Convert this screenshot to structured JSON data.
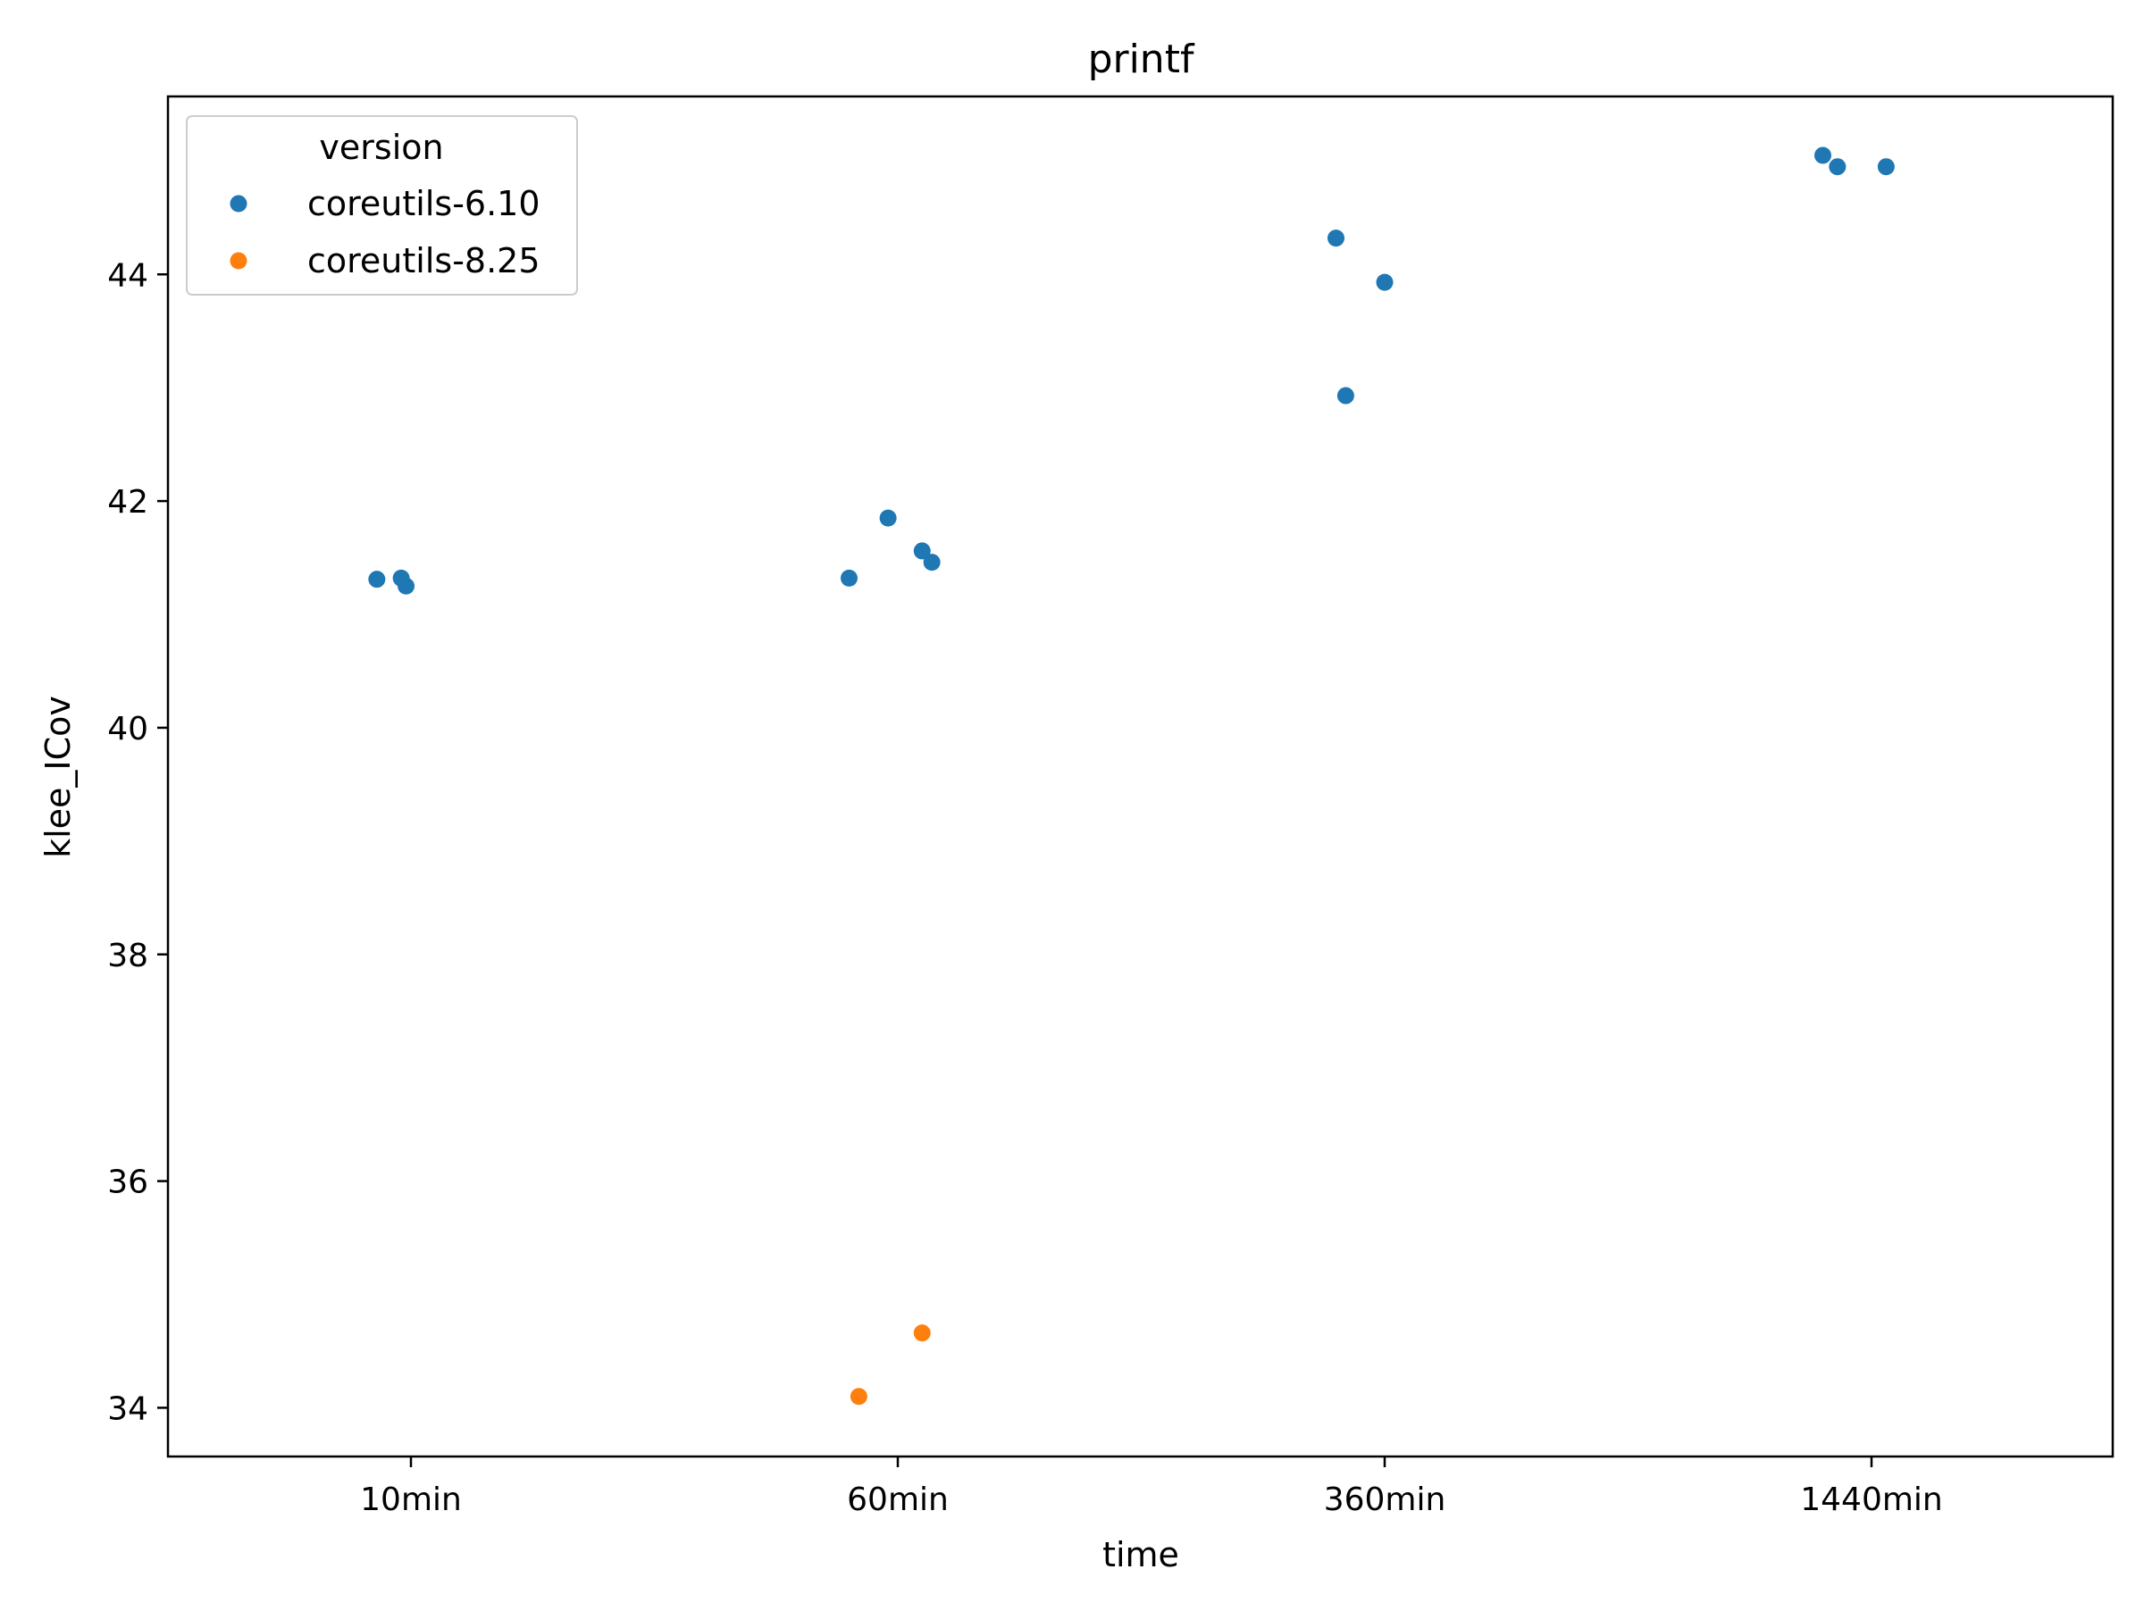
{
  "chart_data": {
    "type": "scatter",
    "title": "printf",
    "xlabel": "time",
    "ylabel": "klee_ICov",
    "categories": [
      "10min",
      "60min",
      "360min",
      "1440min"
    ],
    "yticks": [
      34,
      36,
      38,
      40,
      42,
      44
    ],
    "ylim": [
      33.57,
      45.57
    ],
    "grid": false,
    "legend": {
      "title": "version",
      "placement": "top-left"
    },
    "series": [
      {
        "name": "coreutils-6.10",
        "color": "#1f77b4",
        "points": [
          {
            "x": "10min",
            "jitter": -0.07,
            "y": 41.31
          },
          {
            "x": "10min",
            "jitter": -0.02,
            "y": 41.32
          },
          {
            "x": "10min",
            "jitter": -0.01,
            "y": 41.25
          },
          {
            "x": "60min",
            "jitter": -0.1,
            "y": 41.32
          },
          {
            "x": "60min",
            "jitter": -0.02,
            "y": 41.85
          },
          {
            "x": "60min",
            "jitter": 0.05,
            "y": 41.56
          },
          {
            "x": "60min",
            "jitter": 0.07,
            "y": 41.46
          },
          {
            "x": "360min",
            "jitter": -0.1,
            "y": 44.32
          },
          {
            "x": "360min",
            "jitter": -0.08,
            "y": 42.93
          },
          {
            "x": "360min",
            "jitter": 0.0,
            "y": 43.93
          },
          {
            "x": "1440min",
            "jitter": -0.1,
            "y": 45.05
          },
          {
            "x": "1440min",
            "jitter": -0.07,
            "y": 44.95
          },
          {
            "x": "1440min",
            "jitter": 0.03,
            "y": 44.95
          }
        ]
      },
      {
        "name": "coreutils-8.25",
        "color": "#ff7f0e",
        "points": [
          {
            "x": "60min",
            "jitter": -0.08,
            "y": 34.1
          },
          {
            "x": "60min",
            "jitter": 0.05,
            "y": 34.66
          }
        ]
      }
    ]
  }
}
